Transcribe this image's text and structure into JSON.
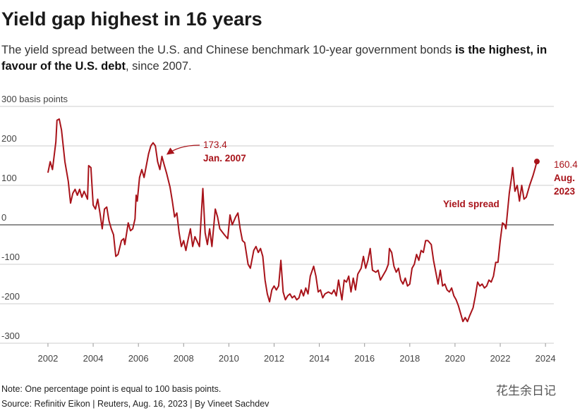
{
  "chart_data": {
    "type": "line",
    "title": "Yield gap highest in 16 years",
    "subtitle": [
      "The yield spread between the U.S. and Chinese benchmark 10-year government bonds ",
      "is the highest, in favour of the U.S. debt",
      ", since 2007."
    ],
    "note": "Note: One percentage point is equal to 100 basis points.",
    "source": "Source: Refinitiv Eikon | Reuters, Aug. 16, 2023 | By Vineet Sachdev",
    "watermark": "花生余日记",
    "xlim": [
      1999.88,
      2024.37
    ],
    "xticks": [
      2002,
      2004,
      2006,
      2008,
      2010,
      2012,
      2014,
      2016,
      2018,
      2020,
      2022,
      2024
    ],
    "ylim": [
      -300,
      300
    ],
    "yticks": [
      -300,
      -200,
      -100,
      0,
      100,
      200,
      {
        "value": 300,
        "label": "300 basis points"
      }
    ],
    "grid": true,
    "x": [
      2002.0,
      2002.1,
      2002.2,
      2002.35,
      2002.4,
      2002.5,
      2002.6,
      2002.75,
      2002.9,
      2003.0,
      2003.1,
      2003.2,
      2003.3,
      2003.4,
      2003.5,
      2003.6,
      2003.75,
      2003.8,
      2003.9,
      2004.0,
      2004.1,
      2004.2,
      2004.3,
      2004.4,
      2004.5,
      2004.6,
      2004.7,
      2004.8,
      2004.9,
      2005.0,
      2005.1,
      2005.25,
      2005.35,
      2005.4,
      2005.55,
      2005.65,
      2005.75,
      2005.85,
      2005.9,
      2005.95,
      2006.05,
      2006.15,
      2006.25,
      2006.35,
      2006.45,
      2006.55,
      2006.65,
      2006.75,
      2006.85,
      2006.95,
      2007.04,
      2007.15,
      2007.25,
      2007.4,
      2007.5,
      2007.6,
      2007.7,
      2007.8,
      2007.9,
      2008.0,
      2008.1,
      2008.15,
      2008.3,
      2008.4,
      2008.5,
      2008.7,
      2008.85,
      2008.95,
      2009.05,
      2009.15,
      2009.25,
      2009.4,
      2009.5,
      2009.6,
      2009.8,
      2009.95,
      2010.05,
      2010.15,
      2010.3,
      2010.4,
      2010.5,
      2010.6,
      2010.7,
      2010.85,
      2010.95,
      2011.1,
      2011.2,
      2011.3,
      2011.4,
      2011.5,
      2011.6,
      2011.7,
      2011.8,
      2011.9,
      2012.0,
      2012.1,
      2012.2,
      2012.3,
      2012.4,
      2012.5,
      2012.6,
      2012.7,
      2012.8,
      2012.9,
      2013.0,
      2013.1,
      2013.2,
      2013.3,
      2013.4,
      2013.5,
      2013.6,
      2013.75,
      2013.85,
      2013.95,
      2014.05,
      2014.15,
      2014.25,
      2014.4,
      2014.55,
      2014.65,
      2014.75,
      2014.85,
      2015.0,
      2015.1,
      2015.2,
      2015.3,
      2015.4,
      2015.5,
      2015.6,
      2015.7,
      2015.85,
      2015.95,
      2016.05,
      2016.15,
      2016.25,
      2016.35,
      2016.5,
      2016.6,
      2016.7,
      2016.8,
      2016.95,
      2017.05,
      2017.1,
      2017.2,
      2017.3,
      2017.4,
      2017.5,
      2017.6,
      2017.7,
      2017.8,
      2017.9,
      2018.0,
      2018.1,
      2018.2,
      2018.3,
      2018.4,
      2018.5,
      2018.6,
      2018.7,
      2018.8,
      2018.95,
      2019.05,
      2019.15,
      2019.25,
      2019.35,
      2019.45,
      2019.55,
      2019.65,
      2019.75,
      2019.85,
      2019.95,
      2020.05,
      2020.15,
      2020.25,
      2020.35,
      2020.45,
      2020.55,
      2020.65,
      2020.8,
      2020.9,
      2021.0,
      2021.1,
      2021.2,
      2021.3,
      2021.4,
      2021.5,
      2021.6,
      2021.7,
      2021.8,
      2021.9,
      2022.0,
      2022.1,
      2022.2,
      2022.25,
      2022.3,
      2022.4,
      2022.5,
      2022.55,
      2022.65,
      2022.75,
      2022.85,
      2022.95,
      2023.05,
      2023.15,
      2023.3,
      2023.45,
      2023.55,
      2023.62
    ],
    "series": [
      {
        "name": "Yield spread",
        "color": "#a8131a",
        "values": [
          132,
          160,
          140,
          210,
          265,
          268,
          240,
          160,
          110,
          55,
          80,
          90,
          75,
          90,
          70,
          85,
          65,
          150,
          145,
          50,
          40,
          65,
          30,
          -10,
          40,
          45,
          10,
          -10,
          -25,
          -80,
          -75,
          -40,
          -35,
          -50,
          5,
          -15,
          -10,
          15,
          75,
          60,
          120,
          140,
          120,
          150,
          180,
          200,
          208,
          200,
          160,
          140,
          173.4,
          150,
          130,
          95,
          60,
          20,
          30,
          -20,
          -55,
          -40,
          -65,
          -50,
          -10,
          -55,
          -30,
          -55,
          92,
          -20,
          -50,
          -10,
          -55,
          40,
          20,
          -10,
          -25,
          -35,
          25,
          0,
          20,
          30,
          -10,
          -40,
          -45,
          -100,
          -110,
          -65,
          -55,
          -70,
          -60,
          -80,
          -140,
          -175,
          -195,
          -165,
          -155,
          -165,
          -155,
          -90,
          -170,
          -190,
          -180,
          -175,
          -185,
          -180,
          -190,
          -185,
          -165,
          -180,
          -160,
          -175,
          -130,
          -105,
          -130,
          -170,
          -165,
          -185,
          -175,
          -170,
          -175,
          -165,
          -180,
          -140,
          -190,
          -140,
          -145,
          -130,
          -170,
          -135,
          -165,
          -125,
          -110,
          -80,
          -110,
          -90,
          -60,
          -115,
          -120,
          -115,
          -140,
          -130,
          -115,
          -100,
          -60,
          -70,
          -105,
          -120,
          -110,
          -140,
          -150,
          -135,
          -155,
          -150,
          -110,
          -100,
          -75,
          -90,
          -65,
          -70,
          -40,
          -40,
          -50,
          -90,
          -120,
          -150,
          -115,
          -155,
          -150,
          -165,
          -170,
          -160,
          -180,
          -190,
          -205,
          -225,
          -245,
          -235,
          -245,
          -230,
          -210,
          -180,
          -145,
          -155,
          -150,
          -160,
          -155,
          -140,
          -145,
          -130,
          -95,
          -95,
          -40,
          5,
          0,
          -10,
          20,
          80,
          120,
          145,
          85,
          100,
          60,
          100,
          65,
          70,
          100,
          125,
          145,
          160.4
        ]
      }
    ],
    "annotations": [
      {
        "value": 173.4,
        "note": "Jan. 2007"
      },
      {
        "value": 160.4,
        "note": "Aug. 2023"
      }
    ]
  }
}
